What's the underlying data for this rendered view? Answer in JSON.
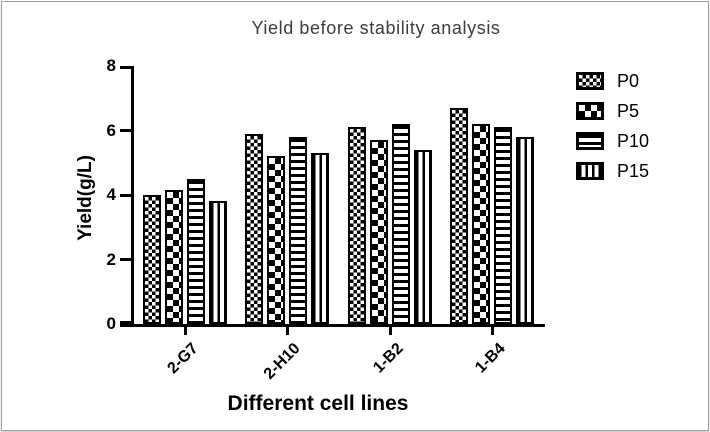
{
  "figure": {
    "background": "#ffffff",
    "border_color": "#9e9e9e",
    "ink_color": "#000000",
    "title_color": "#3c3c3c"
  },
  "chart_data": {
    "type": "bar",
    "title": "Yield before stability analysis",
    "xlabel": "Different cell lines",
    "ylabel": "Yield(g/L)",
    "categories": [
      "2-G7",
      "2-H10",
      "1-B2",
      "1-B4"
    ],
    "series": [
      {
        "name": "P0",
        "pattern": "fine-checker",
        "values": [
          4.0,
          5.9,
          6.1,
          6.7
        ]
      },
      {
        "name": "P5",
        "pattern": "coarse-checker",
        "values": [
          4.15,
          5.2,
          5.7,
          6.2
        ]
      },
      {
        "name": "P10",
        "pattern": "horizontal-stripes",
        "values": [
          4.5,
          5.8,
          6.2,
          6.1
        ]
      },
      {
        "name": "P15",
        "pattern": "vertical-stripes",
        "values": [
          3.8,
          5.3,
          5.4,
          5.8
        ]
      }
    ],
    "ylim": [
      0,
      8
    ],
    "yticks": [
      0,
      2,
      4,
      6,
      8
    ],
    "grid": false,
    "legend_position": "top-right",
    "bar_fill": "#ffffff",
    "bar_outline": "#000000"
  }
}
